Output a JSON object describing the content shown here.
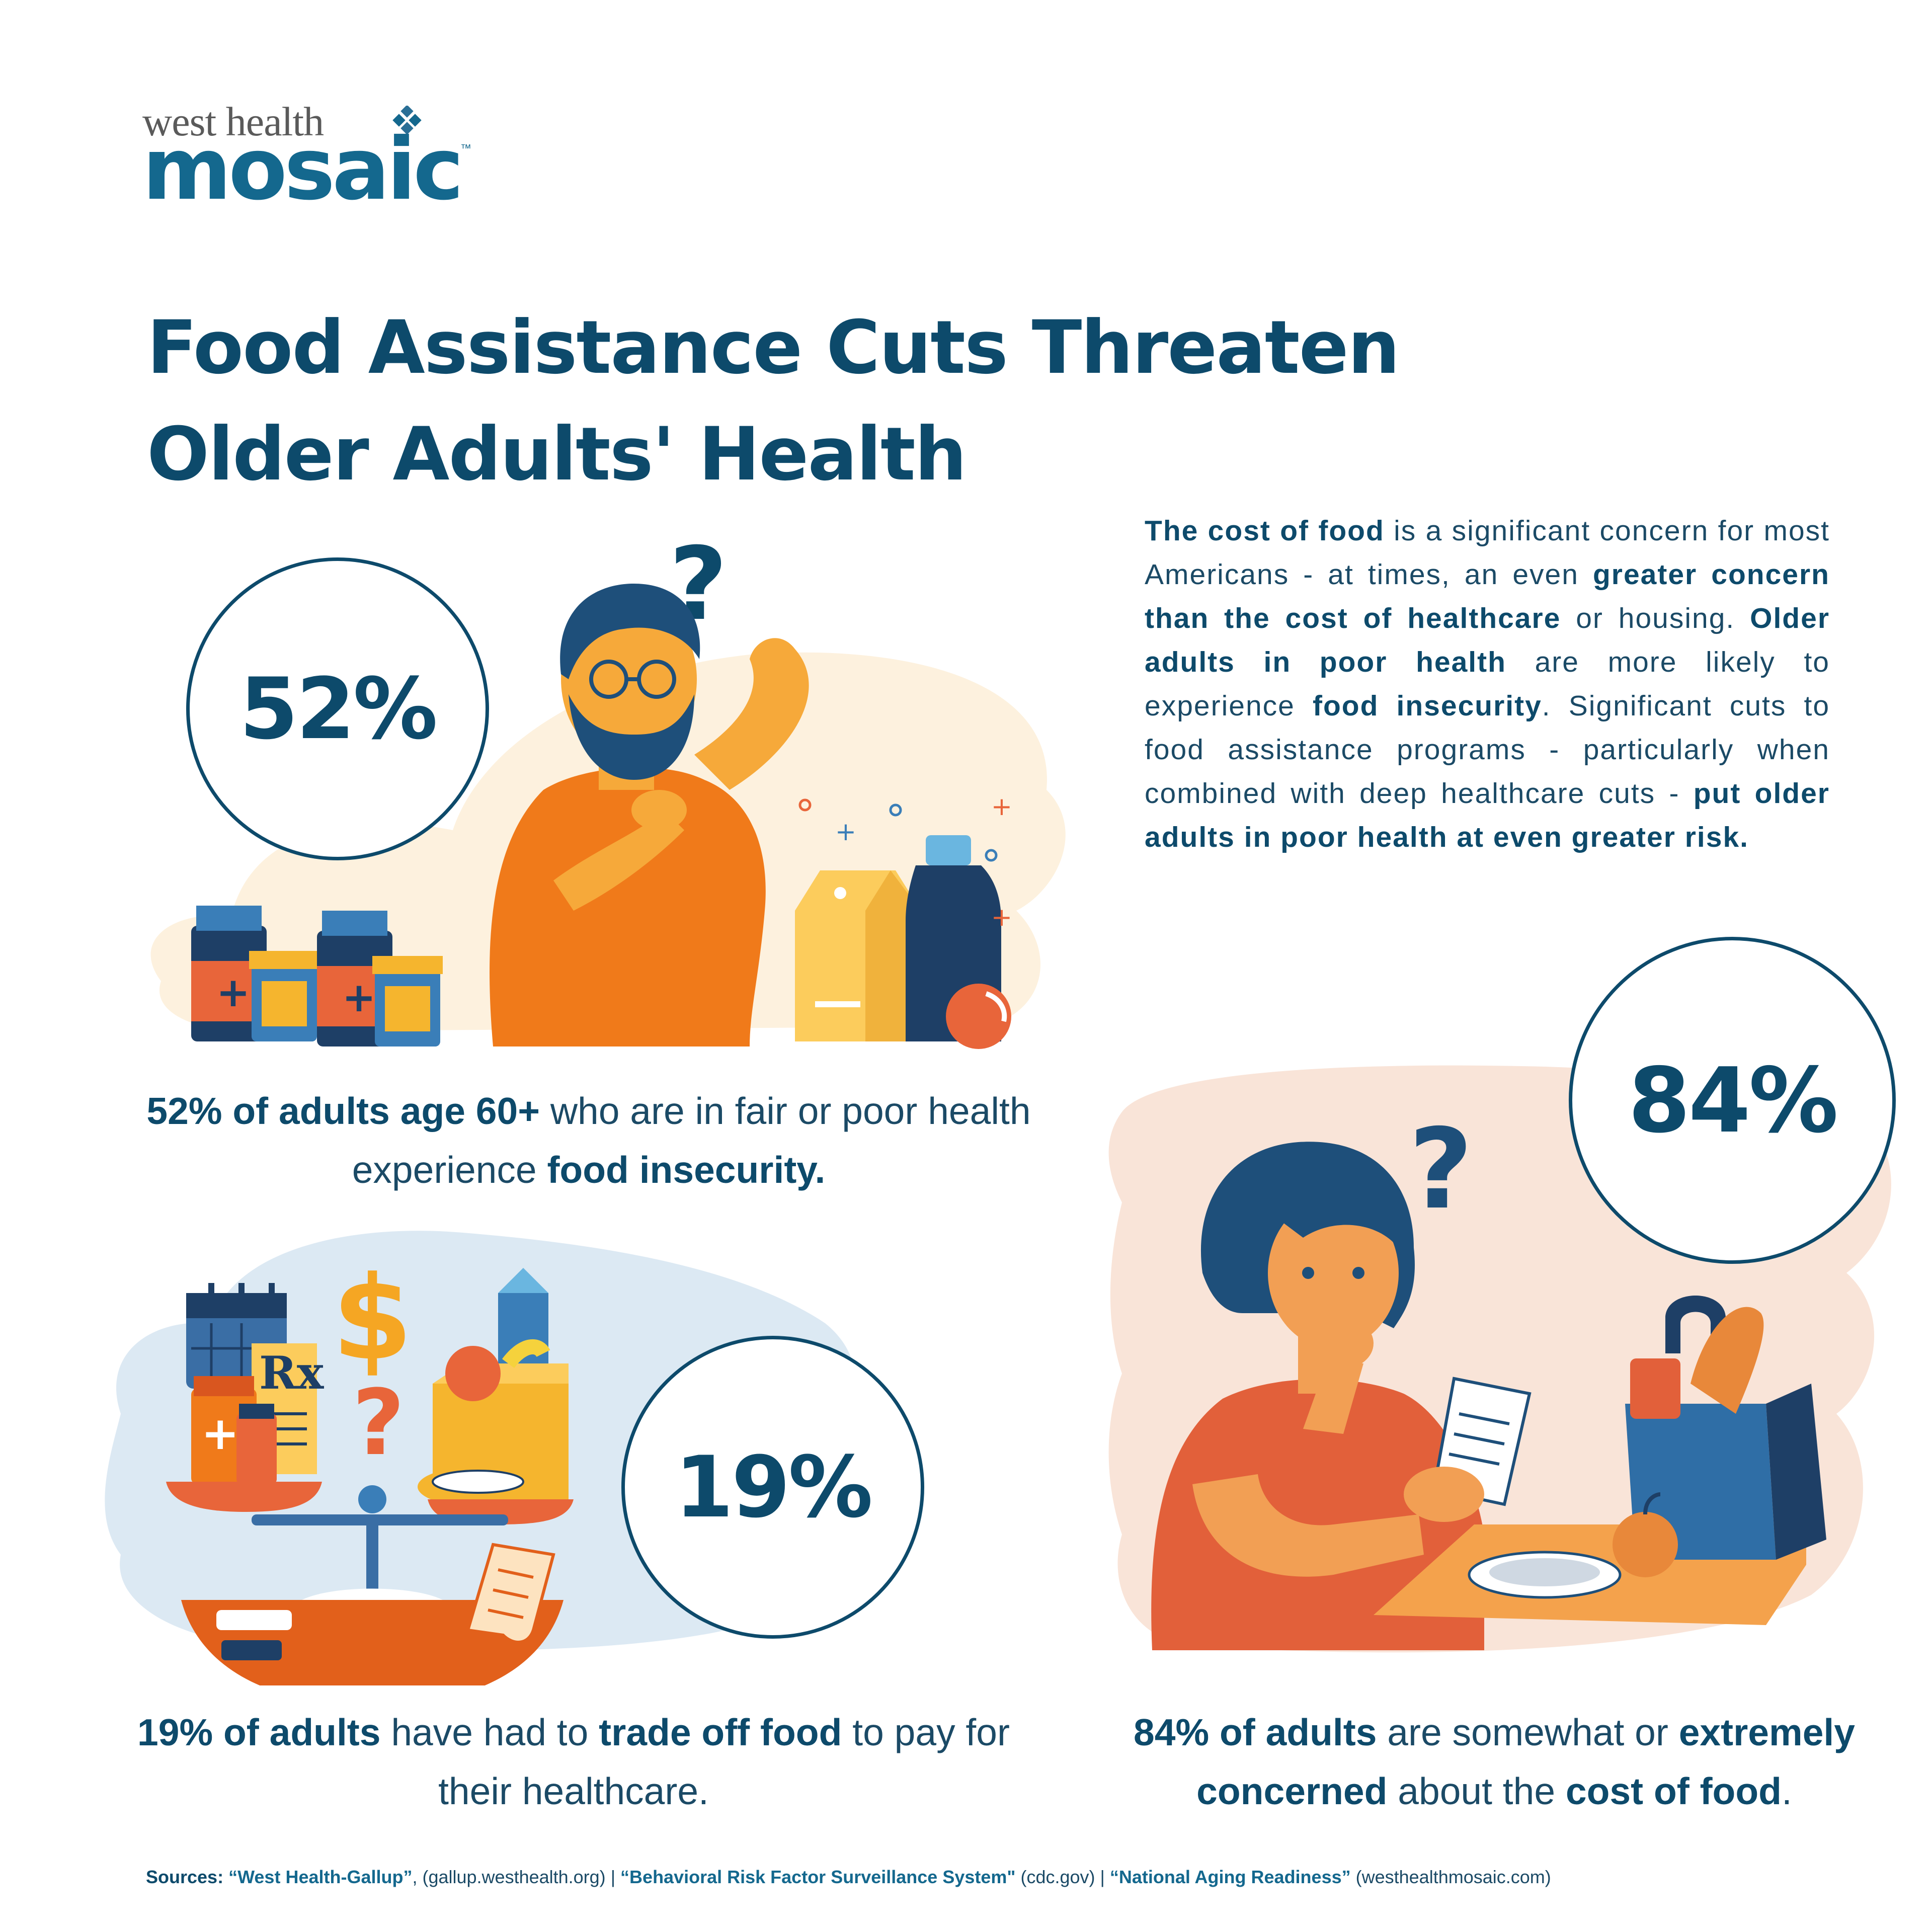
{
  "brand": {
    "top_text": "west health",
    "main_text": "mosaic",
    "tm": "™"
  },
  "title": {
    "line1": "Food Assistance Cuts Threaten",
    "line2": "Older Adults' Health"
  },
  "intro": {
    "p1_bold": "The cost of food",
    "p1_a": " is a significant concern for most Americans - at times, an even ",
    "p1_bold2": "greater concern than the cost of healthcare",
    "p1_b": " or housing. ",
    "p2_bold": "Older adults in poor health",
    "p2_a": " are more likely to experience ",
    "p2_bold2": "food insecurity",
    "p2_b": ". Significant cuts to food assistance programs - particularly when combined with deep healthcare cuts - ",
    "p2_bold3": "put older adults in poor health at even greater risk."
  },
  "stats": [
    {
      "value": "52%",
      "caption_bold": "52% of adults age 60+",
      "caption_a": " who are in fair or poor health experience ",
      "caption_bold2": "food insecurity.",
      "caption_b": ""
    },
    {
      "value": "19%",
      "caption_bold": "19% of adults",
      "caption_a": " have had to ",
      "caption_bold2": "trade off food",
      "caption_b": " to pay for their healthcare."
    },
    {
      "value": "84%",
      "caption_bold": "84% of adults",
      "caption_a": " are somewhat or ",
      "caption_bold2": "extremely concerned",
      "caption_b": " about the ",
      "caption_bold3": "cost of food",
      "caption_c": "."
    }
  ],
  "illustration_glyphs": {
    "question": "?",
    "dollar": "$",
    "rx": "Rx",
    "plus": "+"
  },
  "sources": {
    "label": "Sources:",
    "s1": "“West Health-Gallup”",
    "s1_url": ", (gallup.westhealth.org)",
    "sep": " | ",
    "s2": "“Behavioral Risk Factor Surveillance System\"",
    "s2_url": " (cdc.gov)",
    "s3": "“National Aging Readiness”",
    "s3_url": " (westhealthmosaic.com)"
  },
  "colors": {
    "navy": "#0d4a6b",
    "teal": "#14688e",
    "orange": "#f07a1a",
    "peach": "#f9e4d8",
    "cream": "#fdf1de",
    "lightblue": "#dce9f3"
  }
}
